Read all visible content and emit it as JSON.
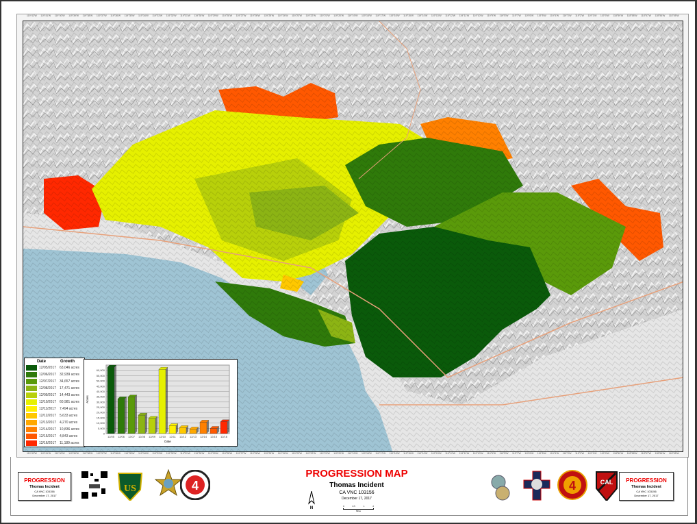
{
  "title": "PROGRESSION MAP",
  "incident": "Thomas Incident",
  "incident_number": "CA VNC 103156",
  "date": "December 17, 2017",
  "title_box": {
    "heading": "PROGRESSION",
    "incident": "Thomas Incident",
    "number": "CA VNC 103156",
    "date": "December 17, 2017"
  },
  "north_label": "N",
  "scale_label": "Miles",
  "scale_ticks": [
    "0",
    "0.5",
    "1",
    "2"
  ],
  "longitude_ticks": [
    "119°42'W",
    "119°41'W",
    "119°40'W",
    "119°39'W",
    "119°38'W",
    "119°37'W",
    "119°36'W",
    "119°35'W",
    "119°34'W",
    "119°33'W",
    "119°32'W",
    "119°31'W",
    "119°30'W",
    "119°29'W",
    "119°28'W",
    "119°27'W",
    "119°26'W",
    "119°25'W",
    "119°24'W",
    "119°23'W",
    "119°22'W",
    "119°21'W",
    "119°20'W",
    "119°19'W",
    "119°18'W",
    "119°17'W",
    "119°16'W",
    "119°15'W",
    "119°14'W",
    "119°13'W",
    "119°12'W",
    "119°11'W",
    "119°10'W",
    "119°9'W",
    "119°8'W",
    "119°7'W",
    "119°6'W",
    "119°5'W",
    "119°4'W",
    "119°3'W",
    "119°2'W",
    "119°1'W",
    "119°0'W",
    "118°59'W",
    "118°58'W",
    "118°57'W",
    "118°56'W",
    "118°55'W"
  ],
  "legend": {
    "date_header": "Date",
    "growth_header": "Growth",
    "rows": [
      {
        "date": "12/05/2017",
        "growth": "63,046 acres",
        "color": "#0a5a0a"
      },
      {
        "date": "12/06/2017",
        "growth": "32,939 acres",
        "color": "#2f7a0a"
      },
      {
        "date": "12/07/2017",
        "growth": "34,657 acres",
        "color": "#5a9a0a"
      },
      {
        "date": "12/08/2017",
        "growth": "17,471 acres",
        "color": "#8cb414"
      },
      {
        "date": "12/09/2017",
        "growth": "14,443 acres",
        "color": "#b8d00a"
      },
      {
        "date": "12/10/2017",
        "growth": "60,981 acres",
        "color": "#e6f000"
      },
      {
        "date": "12/11/2017",
        "growth": "7,494 acres",
        "color": "#fff000"
      },
      {
        "date": "12/12/2017",
        "growth": "5,633 acres",
        "color": "#ffc800"
      },
      {
        "date": "12/13/2017",
        "growth": "4,270 acres",
        "color": "#ffa800"
      },
      {
        "date": "12/14/2017",
        "growth": "10,836 acres",
        "color": "#ff8000"
      },
      {
        "date": "12/15/2017",
        "growth": "4,843 acres",
        "color": "#ff5800"
      },
      {
        "date": "12/16/2017",
        "growth": "11,189 acres",
        "color": "#ff2800"
      }
    ]
  },
  "chart_data": {
    "type": "bar",
    "categories": [
      "12/05",
      "12/06",
      "12/07",
      "12/08",
      "12/09",
      "12/10",
      "12/11",
      "12/12",
      "12/13",
      "12/14",
      "12/15",
      "12/16"
    ],
    "values": [
      63046,
      32939,
      34657,
      17471,
      14443,
      60981,
      7494,
      5633,
      4270,
      10836,
      4843,
      11189
    ],
    "colors": [
      "#0a5a0a",
      "#2f7a0a",
      "#5a9a0a",
      "#8cb414",
      "#b8d00a",
      "#e6f000",
      "#fff000",
      "#ffc800",
      "#ffa800",
      "#ff8000",
      "#ff5800",
      "#ff2800"
    ],
    "xlabel": "Date",
    "ylabel": "Acres",
    "ylim": [
      0,
      65000
    ],
    "yticks": [
      "0",
      "5,000",
      "10,000",
      "15,000",
      "20,000",
      "25,000",
      "30,000",
      "35,000",
      "40,000",
      "45,000",
      "50,000",
      "55,000",
      "60,000"
    ],
    "grid": true
  }
}
